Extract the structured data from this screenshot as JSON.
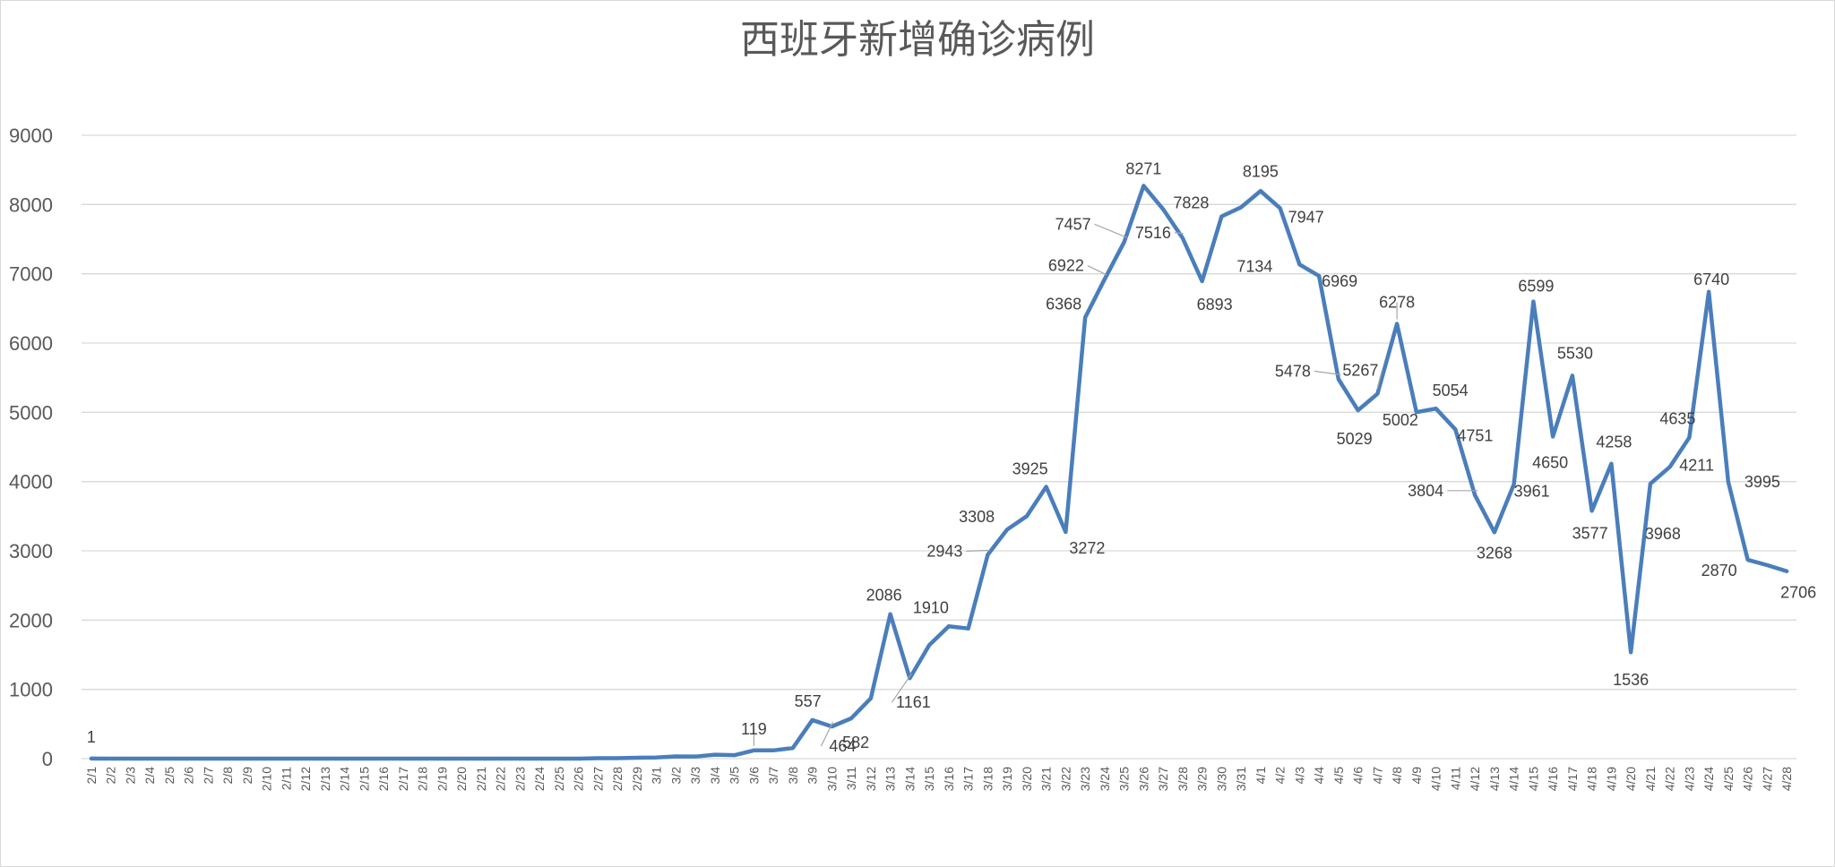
{
  "chart_data": {
    "type": "line",
    "title": "西班牙新增确诊病例",
    "xlabel": "",
    "ylabel": "",
    "ylim": [
      0,
      9000
    ],
    "yticks": [
      "0",
      "1000",
      "2000",
      "3000",
      "4000",
      "5000",
      "6000",
      "7000",
      "8000",
      "9000"
    ],
    "grid": true,
    "legend": "none",
    "colors": {
      "series": "#4a7ebb",
      "grid": "#d9d9d9",
      "text": "#595959"
    },
    "x": [
      "2/1",
      "2/2",
      "2/3",
      "2/4",
      "2/5",
      "2/6",
      "2/7",
      "2/8",
      "2/9",
      "2/10",
      "2/11",
      "2/12",
      "2/13",
      "2/14",
      "2/15",
      "2/16",
      "2/17",
      "2/18",
      "2/19",
      "2/20",
      "2/21",
      "2/22",
      "2/23",
      "2/24",
      "2/25",
      "2/26",
      "2/27",
      "2/28",
      "2/29",
      "3/1",
      "3/2",
      "3/3",
      "3/4",
      "3/5",
      "3/6",
      "3/7",
      "3/8",
      "3/9",
      "3/10",
      "3/11",
      "3/12",
      "3/13",
      "3/14",
      "3/15",
      "3/16",
      "3/17",
      "3/18",
      "3/19",
      "3/20",
      "3/21",
      "3/22",
      "3/23",
      "3/24",
      "3/25",
      "3/26",
      "3/27",
      "3/28",
      "3/29",
      "3/30",
      "3/31",
      "4/1",
      "4/2",
      "4/3",
      "4/4",
      "4/5",
      "4/6",
      "4/7",
      "4/8",
      "4/9",
      "4/10",
      "4/11",
      "4/12",
      "4/13",
      "4/14",
      "4/15",
      "4/16",
      "4/17",
      "4/18",
      "4/19",
      "4/20",
      "4/21",
      "4/22",
      "4/23",
      "4/24",
      "4/25",
      "4/26",
      "4/27",
      "4/28"
    ],
    "x_tick_labels": [
      "2/1",
      "2/2",
      "2/3",
      "2/4",
      "2/5",
      "2/6",
      "2/7",
      "2/8",
      "2/9",
      "2/10",
      "2/11",
      "2/12",
      "2/13",
      "2/14",
      "2/15",
      "2/16",
      "2/17",
      "2/18",
      "2/19",
      "2/20",
      "2/21",
      "2/22",
      "2/23",
      "2/24",
      "2/25",
      "2/26",
      "2/27",
      "2/28",
      "2/29",
      "3/1",
      "3/2",
      "3/3",
      "3/4",
      "3/5",
      "3/6",
      "3/7",
      "3/8",
      "3/9",
      "3/10",
      "3/11",
      "3/12",
      "3/13",
      "3/14",
      "3/15",
      "3/16",
      "3/17",
      "3/18",
      "3/19",
      "3/20",
      "3/21",
      "3/22",
      "3/23",
      "3/24",
      "3/25",
      "3/26",
      "3/27",
      "3/28",
      "3/29",
      "3/30",
      "3/31",
      "4/1",
      "4/2",
      "4/3",
      "4/4",
      "4/5",
      "4/6",
      "4/7",
      "4/8",
      "4/9",
      "4/10",
      "4/11",
      "4/12",
      "4/13",
      "4/14",
      "4/15",
      "4/16",
      "4/17",
      "4/18",
      "4/19",
      "4/20",
      "4/21",
      "4/22",
      "4/23",
      "4/24",
      "4/25",
      "4/26",
      "4/27",
      "4/28"
    ],
    "series": [
      {
        "values": [
          1,
          0,
          0,
          0,
          0,
          0,
          0,
          0,
          0,
          0,
          0,
          0,
          0,
          0,
          0,
          0,
          0,
          0,
          0,
          0,
          0,
          0,
          0,
          0,
          0,
          0,
          6,
          6,
          13,
          17,
          32,
          30,
          56,
          50,
          119,
          119,
          154,
          557,
          464,
          582,
          870,
          2086,
          1161,
          1639,
          1910,
          1879,
          2943,
          3308,
          3500,
          3925,
          3272,
          6368,
          6922,
          7457,
          8271,
          7933,
          7516,
          6893,
          7828,
          7960,
          8195,
          7947,
          7134,
          6969,
          5478,
          5029,
          5267,
          6278,
          5002,
          5054,
          4751,
          3804,
          3268,
          3961,
          6599,
          4650,
          5530,
          3577,
          4258,
          1536,
          3968,
          4211,
          4635,
          6740,
          3995,
          2870,
          2793,
          2706
        ]
      }
    ],
    "data_labels": [
      {
        "x": "2/1",
        "text": "1"
      },
      {
        "x": "3/6",
        "text": "119"
      },
      {
        "x": "3/9",
        "text": "557"
      },
      {
        "x": "3/10",
        "text": "464"
      },
      {
        "x": "3/11",
        "text": "582"
      },
      {
        "x": "3/13",
        "text": "2086"
      },
      {
        "x": "3/14",
        "text": "1161"
      },
      {
        "x": "3/16",
        "text": "1910"
      },
      {
        "x": "3/18",
        "text": "2943"
      },
      {
        "x": "3/19",
        "text": "3308"
      },
      {
        "x": "3/21",
        "text": "3925"
      },
      {
        "x": "3/22",
        "text": "3272"
      },
      {
        "x": "3/23",
        "text": "6368"
      },
      {
        "x": "3/24",
        "text": "6922"
      },
      {
        "x": "3/25",
        "text": "7457"
      },
      {
        "x": "3/26",
        "text": "8271"
      },
      {
        "x": "3/28",
        "text": "7516"
      },
      {
        "x": "3/29",
        "text": "6893"
      },
      {
        "x": "3/30",
        "text": "7828"
      },
      {
        "x": "4/1",
        "text": "8195"
      },
      {
        "x": "4/2",
        "text": "7947"
      },
      {
        "x": "4/3",
        "text": "7134"
      },
      {
        "x": "4/4",
        "text": "6969"
      },
      {
        "x": "4/5",
        "text": "5478"
      },
      {
        "x": "4/6",
        "text": "5029"
      },
      {
        "x": "4/7",
        "text": "5267"
      },
      {
        "x": "4/8",
        "text": "6278"
      },
      {
        "x": "4/9",
        "text": "5002"
      },
      {
        "x": "4/10",
        "text": "5054"
      },
      {
        "x": "4/11",
        "text": "4751"
      },
      {
        "x": "4/12",
        "text": "3804"
      },
      {
        "x": "4/13",
        "text": "3268"
      },
      {
        "x": "4/14",
        "text": "3961"
      },
      {
        "x": "4/15",
        "text": "6599"
      },
      {
        "x": "4/16",
        "text": "4650"
      },
      {
        "x": "4/17",
        "text": "5530"
      },
      {
        "x": "4/18",
        "text": "3577"
      },
      {
        "x": "4/19",
        "text": "4258"
      },
      {
        "x": "4/20",
        "text": "1536"
      },
      {
        "x": "4/21",
        "text": "3968"
      },
      {
        "x": "4/22",
        "text": "4211"
      },
      {
        "x": "4/23",
        "text": "4635"
      },
      {
        "x": "4/24",
        "text": "6740"
      },
      {
        "x": "4/25",
        "text": "3995"
      },
      {
        "x": "4/26",
        "text": "2870"
      },
      {
        "x": "4/28",
        "text": "2706"
      }
    ]
  }
}
